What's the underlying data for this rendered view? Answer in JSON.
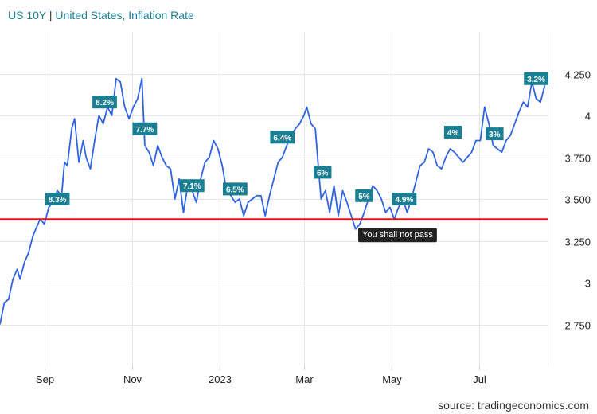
{
  "header": {
    "symbol": "US 10Y",
    "separator": " | ",
    "comparison": "United States, Inflation Rate"
  },
  "source": "source: tradingeconomics.com",
  "colors": {
    "line": "#2f63e6",
    "label_bg": "#1a7f93",
    "threshold": "#e0151b",
    "title": "#1a7f93",
    "grid": "#e6e6e6",
    "tooltip_bg": "#222222"
  },
  "chart_data": {
    "type": "line",
    "title": "US 10Y | United States, Inflation Rate",
    "xlabel": "",
    "ylabel": "",
    "ylim": [
      2.5,
      4.5
    ],
    "y_ticks": [
      {
        "value": 2.75,
        "label": "2.750"
      },
      {
        "value": 3.0,
        "label": "3"
      },
      {
        "value": 3.25,
        "label": "3.250"
      },
      {
        "value": 3.5,
        "label": "3.500"
      },
      {
        "value": 3.75,
        "label": "3.750"
      },
      {
        "value": 4.0,
        "label": "4"
      },
      {
        "value": 4.25,
        "label": "4.250"
      }
    ],
    "x_ticks": [
      {
        "date": "2022-09-01",
        "label": "Sep"
      },
      {
        "date": "2022-11-01",
        "label": "Nov"
      },
      {
        "date": "2023-01-01",
        "label": "2023"
      },
      {
        "date": "2023-03-01",
        "label": "Mar"
      },
      {
        "date": "2023-05-01",
        "label": "May"
      },
      {
        "date": "2023-07-01",
        "label": "Jul"
      }
    ],
    "xlim": [
      "2022-08-01",
      "2023-08-18"
    ],
    "grid": true,
    "series": [
      {
        "points": [
          [
            "2022-08-01",
            2.75
          ],
          [
            "2022-08-04",
            2.88
          ],
          [
            "2022-08-07",
            2.9
          ],
          [
            "2022-08-10",
            3.02
          ],
          [
            "2022-08-13",
            3.08
          ],
          [
            "2022-08-15",
            3.02
          ],
          [
            "2022-08-18",
            3.12
          ],
          [
            "2022-08-21",
            3.18
          ],
          [
            "2022-08-24",
            3.28
          ],
          [
            "2022-08-26",
            3.32
          ],
          [
            "2022-08-29",
            3.38
          ],
          [
            "2022-09-01",
            3.35
          ],
          [
            "2022-09-04",
            3.45
          ],
          [
            "2022-09-07",
            3.48
          ],
          [
            "2022-09-10",
            3.55
          ],
          [
            "2022-09-13",
            3.52
          ],
          [
            "2022-09-15",
            3.72
          ],
          [
            "2022-09-17",
            3.7
          ],
          [
            "2022-09-20",
            3.92
          ],
          [
            "2022-09-22",
            3.98
          ],
          [
            "2022-09-25",
            3.72
          ],
          [
            "2022-09-28",
            3.85
          ],
          [
            "2022-09-30",
            3.75
          ],
          [
            "2022-10-03",
            3.68
          ],
          [
            "2022-10-06",
            3.85
          ],
          [
            "2022-10-09",
            4.0
          ],
          [
            "2022-10-12",
            3.95
          ],
          [
            "2022-10-15",
            4.05
          ],
          [
            "2022-10-18",
            4.0
          ],
          [
            "2022-10-21",
            4.22
          ],
          [
            "2022-10-24",
            4.2
          ],
          [
            "2022-10-27",
            4.05
          ],
          [
            "2022-10-30",
            3.98
          ],
          [
            "2022-11-02",
            4.05
          ],
          [
            "2022-11-05",
            4.1
          ],
          [
            "2022-11-08",
            4.22
          ],
          [
            "2022-11-10",
            3.82
          ],
          [
            "2022-11-13",
            3.78
          ],
          [
            "2022-11-16",
            3.7
          ],
          [
            "2022-11-19",
            3.82
          ],
          [
            "2022-11-22",
            3.75
          ],
          [
            "2022-11-25",
            3.7
          ],
          [
            "2022-11-28",
            3.68
          ],
          [
            "2022-12-01",
            3.5
          ],
          [
            "2022-12-04",
            3.62
          ],
          [
            "2022-12-07",
            3.42
          ],
          [
            "2022-12-10",
            3.58
          ],
          [
            "2022-12-13",
            3.55
          ],
          [
            "2022-12-16",
            3.48
          ],
          [
            "2022-12-19",
            3.62
          ],
          [
            "2022-12-22",
            3.72
          ],
          [
            "2022-12-25",
            3.75
          ],
          [
            "2022-12-28",
            3.85
          ],
          [
            "2022-12-31",
            3.8
          ],
          [
            "2023-01-03",
            3.7
          ],
          [
            "2023-01-06",
            3.55
          ],
          [
            "2023-01-09",
            3.52
          ],
          [
            "2023-01-12",
            3.48
          ],
          [
            "2023-01-15",
            3.5
          ],
          [
            "2023-01-18",
            3.4
          ],
          [
            "2023-01-21",
            3.48
          ],
          [
            "2023-01-24",
            3.5
          ],
          [
            "2023-01-27",
            3.52
          ],
          [
            "2023-01-30",
            3.52
          ],
          [
            "2023-02-02",
            3.4
          ],
          [
            "2023-02-05",
            3.52
          ],
          [
            "2023-02-08",
            3.62
          ],
          [
            "2023-02-11",
            3.72
          ],
          [
            "2023-02-14",
            3.75
          ],
          [
            "2023-02-17",
            3.82
          ],
          [
            "2023-02-20",
            3.88
          ],
          [
            "2023-02-23",
            3.92
          ],
          [
            "2023-02-26",
            3.95
          ],
          [
            "2023-03-01",
            4.0
          ],
          [
            "2023-03-03",
            4.05
          ],
          [
            "2023-03-06",
            3.95
          ],
          [
            "2023-03-09",
            3.92
          ],
          [
            "2023-03-11",
            3.7
          ],
          [
            "2023-03-13",
            3.5
          ],
          [
            "2023-03-16",
            3.55
          ],
          [
            "2023-03-19",
            3.42
          ],
          [
            "2023-03-22",
            3.58
          ],
          [
            "2023-03-25",
            3.4
          ],
          [
            "2023-03-28",
            3.55
          ],
          [
            "2023-03-31",
            3.48
          ],
          [
            "2023-04-03",
            3.4
          ],
          [
            "2023-04-06",
            3.32
          ],
          [
            "2023-04-09",
            3.35
          ],
          [
            "2023-04-12",
            3.42
          ],
          [
            "2023-04-15",
            3.5
          ],
          [
            "2023-04-18",
            3.58
          ],
          [
            "2023-04-21",
            3.55
          ],
          [
            "2023-04-24",
            3.5
          ],
          [
            "2023-04-27",
            3.42
          ],
          [
            "2023-04-30",
            3.45
          ],
          [
            "2023-05-03",
            3.38
          ],
          [
            "2023-05-06",
            3.45
          ],
          [
            "2023-05-09",
            3.5
          ],
          [
            "2023-05-12",
            3.42
          ],
          [
            "2023-05-15",
            3.5
          ],
          [
            "2023-05-18",
            3.6
          ],
          [
            "2023-05-21",
            3.7
          ],
          [
            "2023-05-24",
            3.72
          ],
          [
            "2023-05-27",
            3.8
          ],
          [
            "2023-05-30",
            3.78
          ],
          [
            "2023-06-02",
            3.7
          ],
          [
            "2023-06-05",
            3.68
          ],
          [
            "2023-06-08",
            3.75
          ],
          [
            "2023-06-11",
            3.8
          ],
          [
            "2023-06-14",
            3.78
          ],
          [
            "2023-06-17",
            3.75
          ],
          [
            "2023-06-20",
            3.72
          ],
          [
            "2023-06-23",
            3.75
          ],
          [
            "2023-06-26",
            3.78
          ],
          [
            "2023-06-29",
            3.85
          ],
          [
            "2023-07-02",
            3.85
          ],
          [
            "2023-07-05",
            4.05
          ],
          [
            "2023-07-08",
            3.95
          ],
          [
            "2023-07-11",
            3.82
          ],
          [
            "2023-07-14",
            3.8
          ],
          [
            "2023-07-17",
            3.78
          ],
          [
            "2023-07-20",
            3.85
          ],
          [
            "2023-07-23",
            3.88
          ],
          [
            "2023-07-26",
            3.95
          ],
          [
            "2023-07-29",
            4.02
          ],
          [
            "2023-08-01",
            4.08
          ],
          [
            "2023-08-04",
            4.05
          ],
          [
            "2023-08-07",
            4.2
          ],
          [
            "2023-08-10",
            4.1
          ],
          [
            "2023-08-13",
            4.08
          ],
          [
            "2023-08-16",
            4.18
          ]
        ]
      }
    ],
    "annotations": [
      {
        "label": "8.3%",
        "date": "2022-09-10",
        "y": 3.5
      },
      {
        "label": "8.2%",
        "date": "2022-10-13",
        "y": 4.08
      },
      {
        "label": "7.7%",
        "date": "2022-11-10",
        "y": 3.92
      },
      {
        "label": "7.1%",
        "date": "2022-12-13",
        "y": 3.58
      },
      {
        "label": "6.5%",
        "date": "2023-01-12",
        "y": 3.56
      },
      {
        "label": "6.4%",
        "date": "2023-02-14",
        "y": 3.87
      },
      {
        "label": "6%",
        "date": "2023-03-14",
        "y": 3.66
      },
      {
        "label": "5%",
        "date": "2023-04-12",
        "y": 3.52
      },
      {
        "label": "4.9%",
        "date": "2023-05-10",
        "y": 3.5
      },
      {
        "label": "4%",
        "date": "2023-06-13",
        "y": 3.9
      },
      {
        "label": "3%",
        "date": "2023-07-12",
        "y": 3.89
      },
      {
        "label": "3.2%",
        "date": "2023-08-10",
        "y": 4.22
      }
    ],
    "threshold": {
      "y": 3.38,
      "label": "You shall not pass"
    }
  }
}
